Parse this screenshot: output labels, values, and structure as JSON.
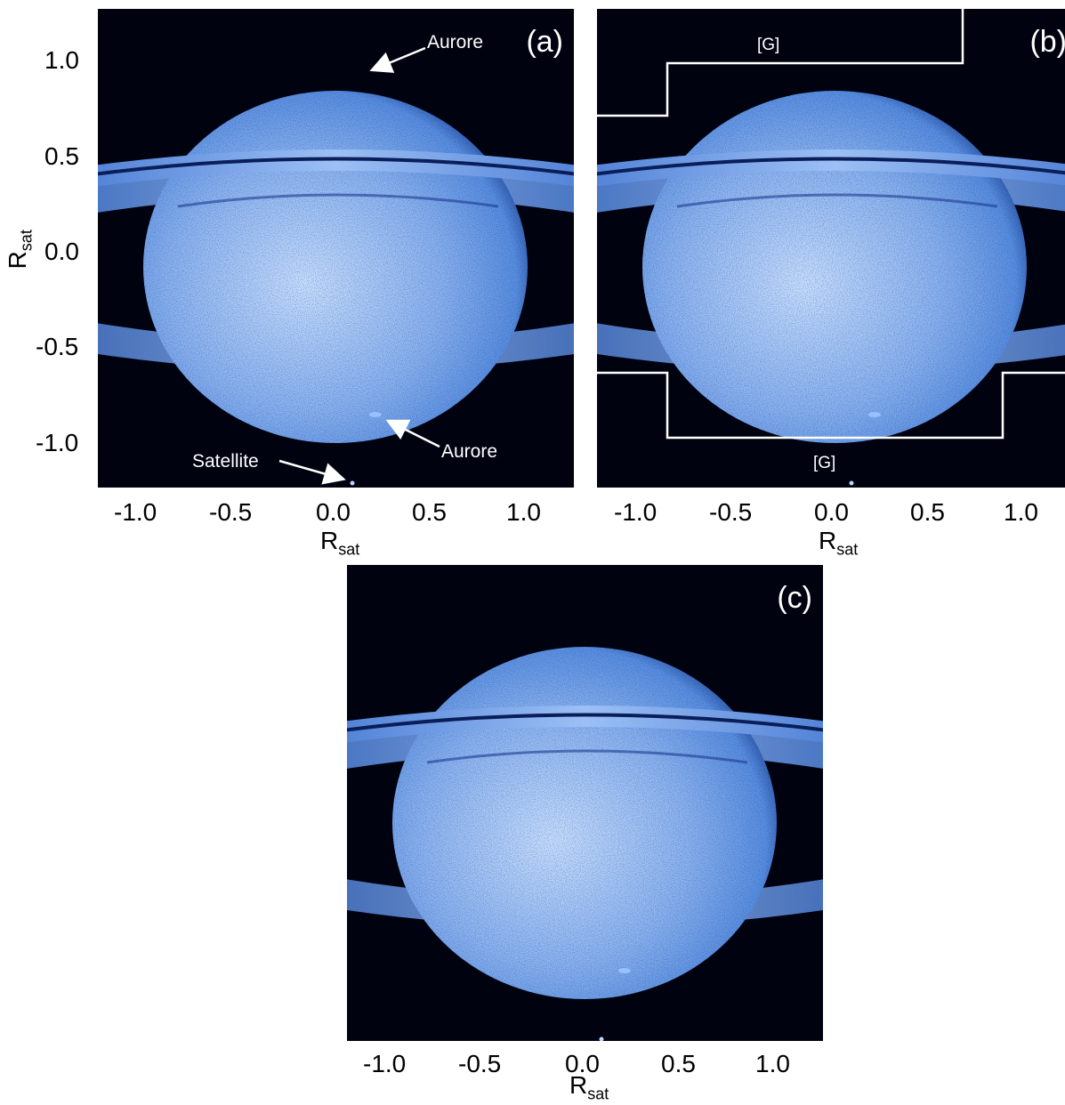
{
  "axis": {
    "x_label_main": "R",
    "x_label_sub": "sat",
    "y_label_main": "R",
    "y_label_sub": "sat",
    "x_ticks": [
      "-1.0",
      "-0.5",
      "0.0",
      "0.5",
      "1.0"
    ],
    "y_ticks": [
      "1.0",
      "0.5",
      "0.0",
      "-0.5",
      "-1.0"
    ],
    "range": [
      -1.25,
      1.25
    ]
  },
  "colors": {
    "sky": "#000210",
    "planet_light": "#cfe2ff",
    "planet_mid": "#5c8fe0",
    "planet_dark": "#0d2a7a",
    "overlay": "#ffffff"
  },
  "panels": {
    "a": {
      "letter": "(a)",
      "annotations": {
        "aurora_top": "Aurore",
        "aurora_bottom": "Aurore",
        "satellite": "Satellite"
      }
    },
    "b": {
      "letter": "(b)",
      "region_top": "[G]",
      "region_bottom": "[G]"
    },
    "c": {
      "letter": "(c)"
    }
  }
}
